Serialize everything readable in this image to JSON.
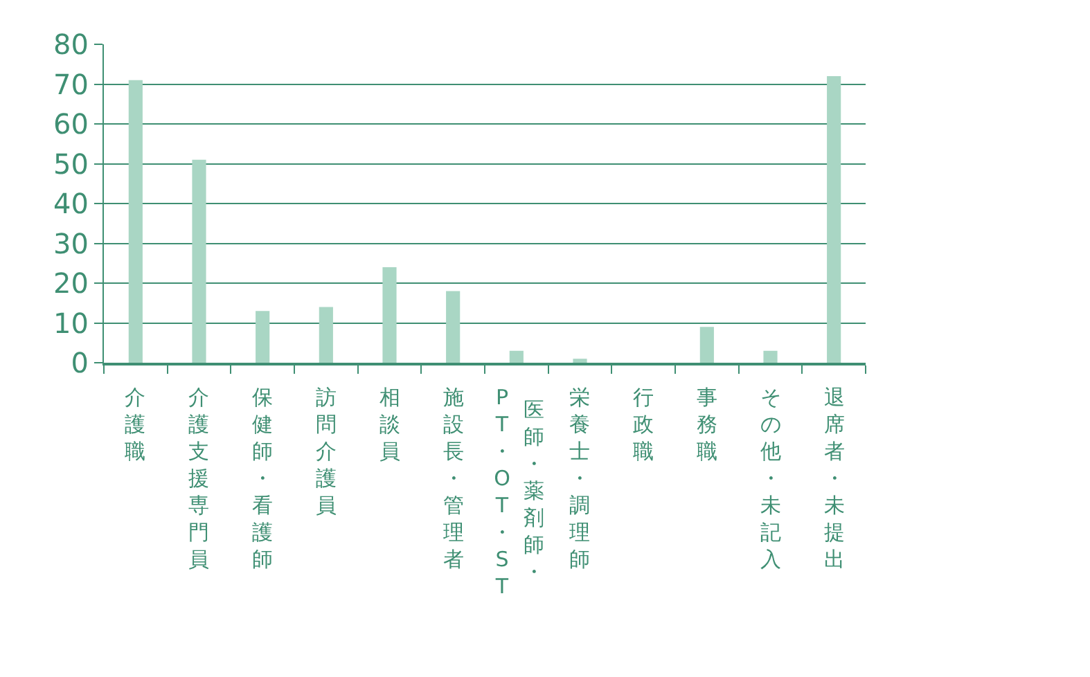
{
  "chart_data": {
    "type": "bar",
    "categories": [
      "介護職",
      "介護支援専門員",
      "保健師・看護師",
      "訪問介護員",
      "相談員",
      "施設長・管理者",
      "PT・OT・ST",
      "栄養士・調理師",
      "行政職",
      "事務職",
      "その他・未記入",
      "退席者・未提出"
    ],
    "values": [
      71,
      51,
      13,
      14,
      24,
      18,
      3,
      1,
      0,
      9,
      3,
      72
    ],
    "color": "#a9d6c4",
    "ylim": [
      0,
      80
    ],
    "yticks": [
      0,
      10,
      20,
      30,
      40,
      50,
      60,
      70,
      80
    ],
    "grid": "y",
    "annotations": [
      "医師・薬剤師・"
    ]
  }
}
